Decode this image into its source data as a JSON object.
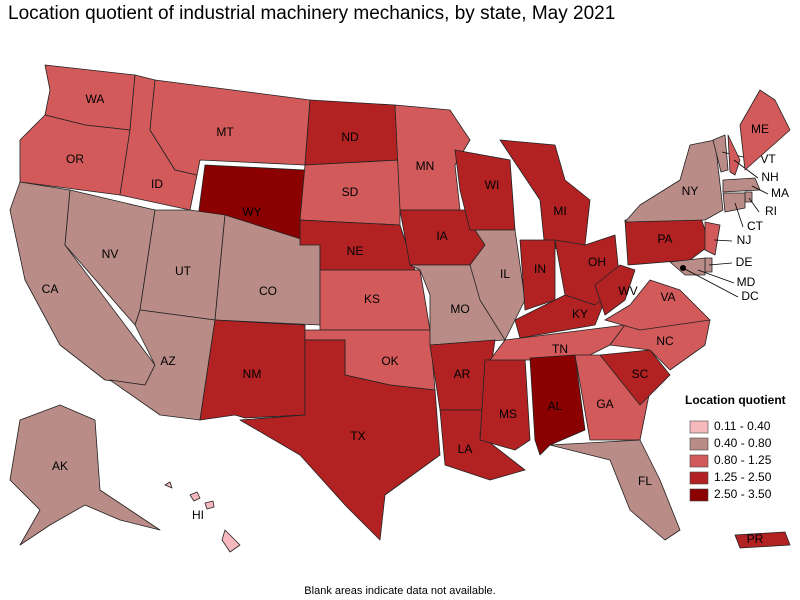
{
  "title": "Location quotient of industrial machinery mechanics, by state, May 2021",
  "legend": {
    "title": "Location quotient",
    "entries": [
      {
        "label": "0.11 - 0.40",
        "color": "#f5b9bd"
      },
      {
        "label": "0.40 - 0.80",
        "color": "#b98c87"
      },
      {
        "label": "0.80 - 1.25",
        "color": "#d35a5a"
      },
      {
        "label": "1.25 - 2.50",
        "color": "#b22222"
      },
      {
        "label": "2.50 - 3.50",
        "color": "#8b0000"
      }
    ]
  },
  "states": [
    {
      "label": "WA",
      "class": 2
    },
    {
      "label": "OR",
      "class": 2
    },
    {
      "label": "CA",
      "class": 1
    },
    {
      "label": "NV",
      "class": 1
    },
    {
      "label": "ID",
      "class": 2
    },
    {
      "label": "MT",
      "class": 2
    },
    {
      "label": "WY",
      "class": 4
    },
    {
      "label": "UT",
      "class": 1
    },
    {
      "label": "CO",
      "class": 1
    },
    {
      "label": "AZ",
      "class": 1
    },
    {
      "label": "NM",
      "class": 3
    },
    {
      "label": "ND",
      "class": 3
    },
    {
      "label": "SD",
      "class": 2
    },
    {
      "label": "NE",
      "class": 3
    },
    {
      "label": "KS",
      "class": 2
    },
    {
      "label": "OK",
      "class": 2
    },
    {
      "label": "TX",
      "class": 3
    },
    {
      "label": "MN",
      "class": 2
    },
    {
      "label": "IA",
      "class": 3
    },
    {
      "label": "MO",
      "class": 1
    },
    {
      "label": "AR",
      "class": 3
    },
    {
      "label": "LA",
      "class": 3
    },
    {
      "label": "WI",
      "class": 3
    },
    {
      "label": "IL",
      "class": 1
    },
    {
      "label": "MS",
      "class": 3
    },
    {
      "label": "MI",
      "class": 3
    },
    {
      "label": "IN",
      "class": 3
    },
    {
      "label": "KY",
      "class": 3
    },
    {
      "label": "TN",
      "class": 2
    },
    {
      "label": "AL",
      "class": 4
    },
    {
      "label": "OH",
      "class": 3
    },
    {
      "label": "WV",
      "class": 3
    },
    {
      "label": "GA",
      "class": 2
    },
    {
      "label": "FL",
      "class": 1
    },
    {
      "label": "SC",
      "class": 3
    },
    {
      "label": "NC",
      "class": 2
    },
    {
      "label": "VA",
      "class": 2
    },
    {
      "label": "PA",
      "class": 3
    },
    {
      "label": "NY",
      "class": 1
    },
    {
      "label": "VT",
      "class": 1
    },
    {
      "label": "NH",
      "class": 2
    },
    {
      "label": "ME",
      "class": 2
    },
    {
      "label": "MA",
      "class": 1
    },
    {
      "label": "RI",
      "class": 1
    },
    {
      "label": "CT",
      "class": 1
    },
    {
      "label": "NJ",
      "class": 2
    },
    {
      "label": "DE",
      "class": 1
    },
    {
      "label": "MD",
      "class": 1
    },
    {
      "label": "DC",
      "class": 3
    },
    {
      "label": "AK",
      "class": 1
    },
    {
      "label": "HI",
      "class": 0
    },
    {
      "label": "PR",
      "class": 3
    }
  ],
  "footnote": "Blank areas indicate data not available."
}
